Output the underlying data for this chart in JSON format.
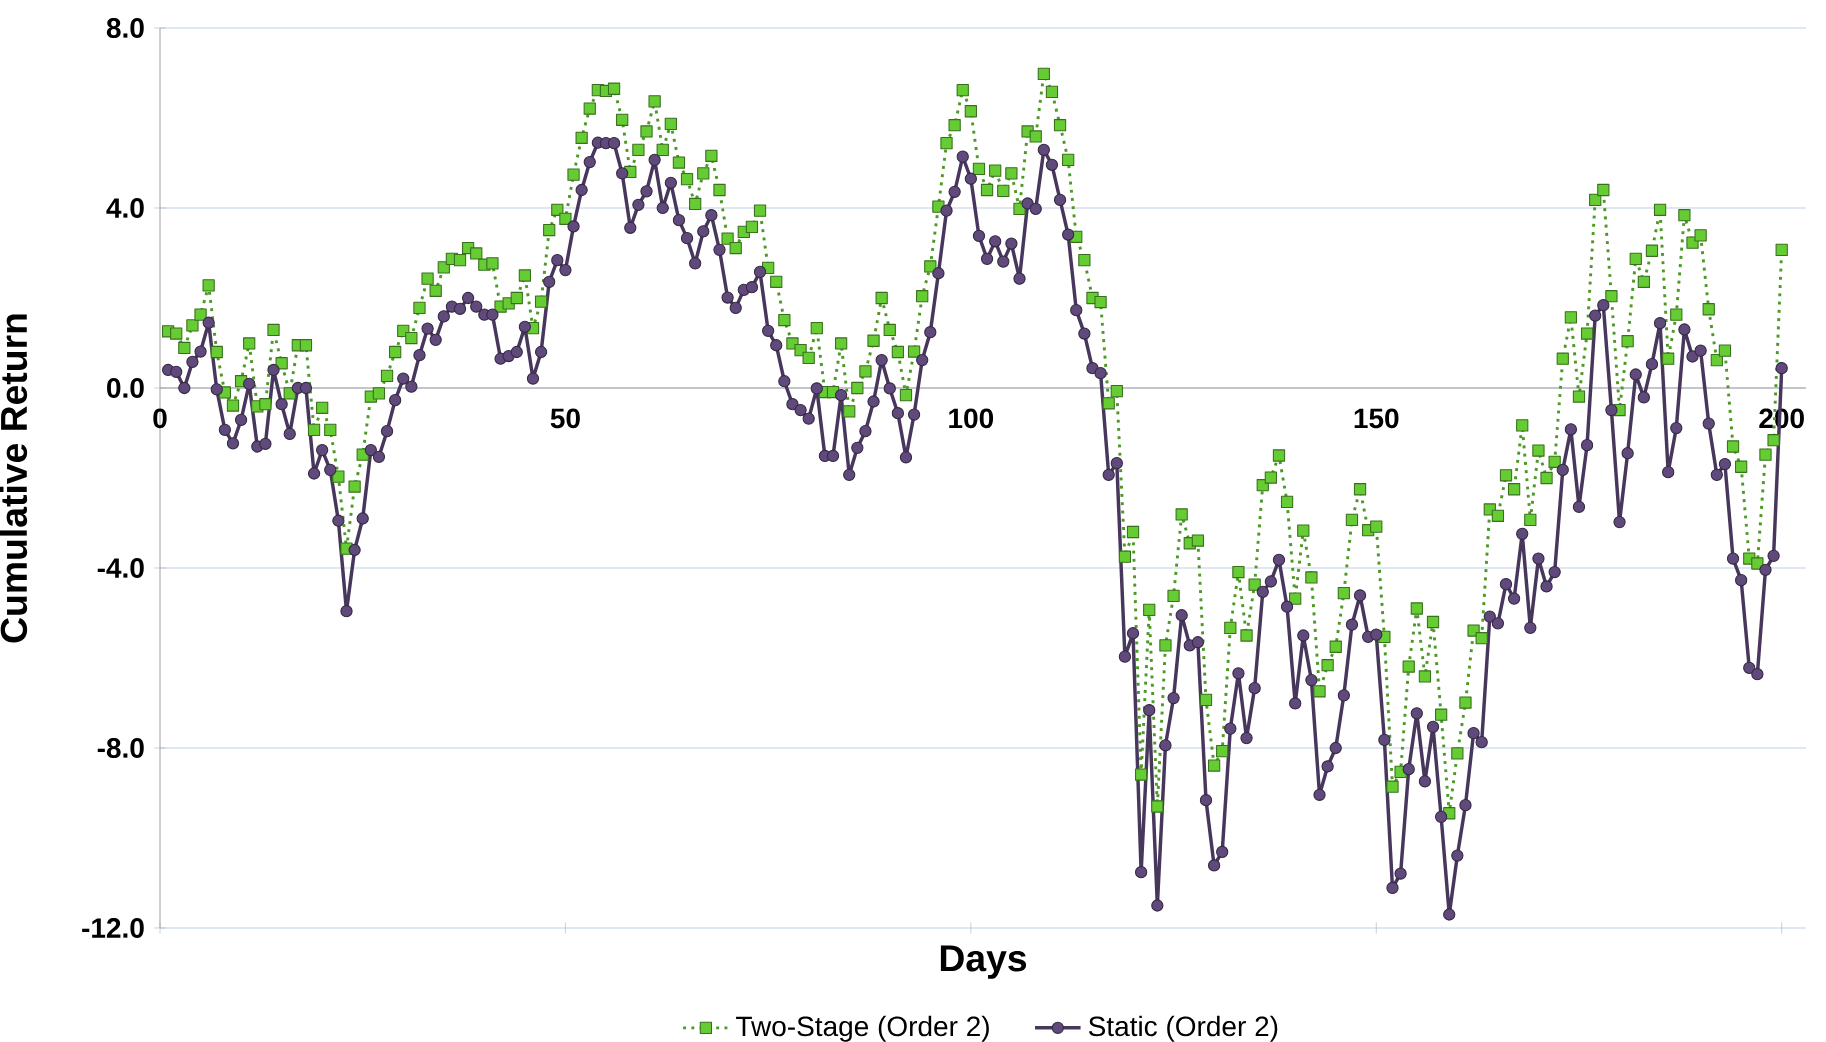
{
  "chart_data": {
    "type": "line",
    "xlabel": "Days",
    "ylabel": "Cumulative Return",
    "x": [
      1,
      2,
      3,
      4,
      5,
      6,
      7,
      8,
      9,
      10,
      11,
      12,
      13,
      14,
      15,
      16,
      17,
      18,
      19,
      20,
      21,
      22,
      23,
      24,
      25,
      26,
      27,
      28,
      29,
      30,
      31,
      32,
      33,
      34,
      35,
      36,
      37,
      38,
      39,
      40,
      41,
      42,
      43,
      44,
      45,
      46,
      47,
      48,
      49,
      50,
      51,
      52,
      53,
      54,
      55,
      56,
      57,
      58,
      59,
      60,
      61,
      62,
      63,
      64,
      65,
      66,
      67,
      68,
      69,
      70,
      71,
      72,
      73,
      74,
      75,
      76,
      77,
      78,
      79,
      80,
      81,
      82,
      83,
      84,
      85,
      86,
      87,
      88,
      89,
      90,
      91,
      92,
      93,
      94,
      95,
      96,
      97,
      98,
      99,
      100,
      101,
      102,
      103,
      104,
      105,
      106,
      107,
      108,
      109,
      110,
      111,
      112,
      113,
      114,
      115,
      116,
      117,
      118,
      119,
      120,
      121,
      122,
      123,
      124,
      125,
      126,
      127,
      128,
      129,
      130,
      131,
      132,
      133,
      134,
      135,
      136,
      137,
      138,
      139,
      140,
      141,
      142,
      143,
      144,
      145,
      146,
      147,
      148,
      149,
      150,
      151,
      152,
      153,
      154,
      155,
      156,
      157,
      158,
      159,
      160,
      161,
      162,
      163,
      164,
      165,
      166,
      167,
      168,
      169,
      170,
      171,
      172,
      173,
      174,
      175,
      176,
      177,
      178,
      179,
      180,
      181,
      182,
      183,
      184,
      185,
      186,
      187,
      188,
      189,
      190,
      191,
      192,
      193,
      194,
      195,
      196,
      197,
      198,
      199,
      200
    ],
    "series": [
      {
        "name": "Two-Stage (Order 2)",
        "color": "#66cc33",
        "marker": "square",
        "line_style": "dotted",
        "values": [
          1.26,
          1.21,
          0.89,
          1.39,
          1.63,
          2.28,
          0.8,
          -0.1,
          -0.39,
          0.15,
          0.99,
          -0.41,
          -0.36,
          1.29,
          0.55,
          -0.12,
          0.95,
          0.95,
          -0.93,
          -0.44,
          -0.93,
          -1.97,
          -3.57,
          -2.19,
          -1.48,
          -0.19,
          -0.12,
          0.27,
          0.8,
          1.27,
          1.11,
          1.78,
          2.43,
          2.16,
          2.68,
          2.87,
          2.84,
          3.11,
          2.99,
          2.74,
          2.77,
          1.81,
          1.88,
          2.0,
          2.5,
          1.33,
          1.92,
          3.51,
          3.96,
          3.76,
          4.74,
          5.56,
          6.21,
          6.62,
          6.6,
          6.65,
          5.96,
          4.8,
          5.29,
          5.7,
          6.37,
          5.29,
          5.87,
          5.01,
          4.64,
          4.09,
          4.77,
          5.16,
          4.4,
          3.32,
          3.11,
          3.47,
          3.58,
          3.94,
          2.67,
          2.36,
          1.51,
          0.99,
          0.84,
          0.67,
          1.33,
          -0.09,
          -0.09,
          0.99,
          -0.52,
          0.0,
          0.37,
          1.05,
          2.0,
          1.29,
          0.8,
          -0.16,
          0.81,
          2.04,
          2.7,
          4.03,
          5.44,
          5.84,
          6.62,
          6.15,
          4.87,
          4.4,
          4.83,
          4.38,
          4.77,
          3.98,
          5.7,
          5.59,
          6.98,
          6.58,
          5.84,
          5.07,
          3.36,
          2.84,
          2.0,
          1.91,
          -0.34,
          -0.07,
          -3.75,
          -3.2,
          -8.59,
          -4.93,
          -9.3,
          -5.72,
          -4.62,
          -2.81,
          -3.45,
          -3.39,
          -6.93,
          -8.39,
          -8.07,
          -5.33,
          -4.09,
          -5.5,
          -4.37,
          -2.16,
          -1.99,
          -1.5,
          -2.53,
          -4.68,
          -3.17,
          -4.21,
          -6.74,
          -6.16,
          -5.75,
          -4.56,
          -2.93,
          -2.25,
          -3.16,
          -3.08,
          -5.53,
          -8.86,
          -8.53,
          -6.19,
          -4.9,
          -6.41,
          -5.2,
          -7.26,
          -9.45,
          -8.12,
          -6.99,
          -5.39,
          -5.56,
          -2.7,
          -2.84,
          -1.94,
          -2.25,
          -0.83,
          -2.93,
          -1.39,
          -2.0,
          -1.64,
          0.65,
          1.57,
          -0.19,
          1.21,
          4.18,
          4.4,
          2.04,
          -0.49,
          1.04,
          2.87,
          2.36,
          3.05,
          3.96,
          0.65,
          1.63,
          3.84,
          3.23,
          3.39,
          1.75,
          0.62,
          0.83,
          -1.3,
          -1.75,
          -3.79,
          -3.9,
          -1.48,
          -1.16,
          3.07
        ]
      },
      {
        "name": "Static (Order 2)",
        "color": "#604a7b",
        "marker": "circle",
        "line_style": "solid",
        "values": [
          0.4,
          0.36,
          0.0,
          0.58,
          0.81,
          1.45,
          -0.03,
          -0.93,
          -1.23,
          -0.71,
          0.09,
          -1.3,
          -1.24,
          0.4,
          -0.36,
          -1.02,
          0.0,
          0.0,
          -1.9,
          -1.38,
          -1.82,
          -2.95,
          -4.96,
          -3.6,
          -2.9,
          -1.38,
          -1.53,
          -0.96,
          -0.27,
          0.21,
          0.03,
          0.73,
          1.32,
          1.07,
          1.59,
          1.81,
          1.76,
          2.0,
          1.81,
          1.63,
          1.63,
          0.65,
          0.71,
          0.8,
          1.36,
          0.21,
          0.8,
          2.36,
          2.84,
          2.62,
          3.59,
          4.4,
          5.02,
          5.45,
          5.44,
          5.44,
          4.77,
          3.56,
          4.07,
          4.37,
          5.07,
          4.0,
          4.56,
          3.73,
          3.33,
          2.77,
          3.48,
          3.84,
          3.07,
          2.01,
          1.78,
          2.18,
          2.24,
          2.58,
          1.27,
          0.95,
          0.15,
          -0.36,
          -0.49,
          -0.68,
          -0.01,
          -1.51,
          -1.51,
          -0.16,
          -1.93,
          -1.33,
          -0.96,
          -0.3,
          0.62,
          -0.01,
          -0.56,
          -1.54,
          -0.59,
          0.62,
          1.24,
          2.55,
          3.94,
          4.36,
          5.14,
          4.65,
          3.38,
          2.87,
          3.26,
          2.81,
          3.21,
          2.43,
          4.1,
          3.98,
          5.29,
          4.96,
          4.18,
          3.41,
          1.73,
          1.21,
          0.44,
          0.33,
          -1.93,
          -1.67,
          -5.97,
          -5.45,
          -10.76,
          -7.16,
          -11.5,
          -7.94,
          -6.89,
          -5.05,
          -5.72,
          -5.65,
          -9.16,
          -10.61,
          -10.31,
          -7.57,
          -6.34,
          -7.78,
          -6.67,
          -4.53,
          -4.3,
          -3.82,
          -4.86,
          -7.01,
          -5.5,
          -6.49,
          -9.04,
          -8.41,
          -8.0,
          -6.83,
          -5.26,
          -4.61,
          -5.53,
          -5.48,
          -7.82,
          -11.11,
          -10.79,
          -8.47,
          -7.23,
          -8.74,
          -7.53,
          -9.53,
          -11.7,
          -10.39,
          -9.27,
          -7.67,
          -7.87,
          -5.08,
          -5.23,
          -4.36,
          -4.68,
          -3.24,
          -5.33,
          -3.79,
          -4.41,
          -4.09,
          -1.82,
          -0.92,
          -2.64,
          -1.27,
          1.61,
          1.84,
          -0.49,
          -2.98,
          -1.45,
          0.3,
          -0.21,
          0.53,
          1.44,
          -1.87,
          -0.89,
          1.3,
          0.7,
          0.83,
          -0.79,
          -1.93,
          -1.69,
          -3.79,
          -4.27,
          -6.22,
          -6.36,
          -4.04,
          -3.73,
          0.44
        ]
      }
    ],
    "xlim": [
      0,
      203
    ],
    "xticks": [
      0,
      50,
      100,
      150,
      200
    ],
    "ylim": [
      -12,
      8
    ],
    "yticks": [
      {
        "value": -12,
        "label": "-12.0"
      },
      {
        "value": -8,
        "label": "-8.0"
      },
      {
        "value": -4,
        "label": "-4.0"
      },
      {
        "value": 0,
        "label": "0.0"
      },
      {
        "value": 4,
        "label": "4.0"
      },
      {
        "value": 8,
        "label": "8.0"
      }
    ],
    "grid": "y",
    "legend": "bottom"
  }
}
